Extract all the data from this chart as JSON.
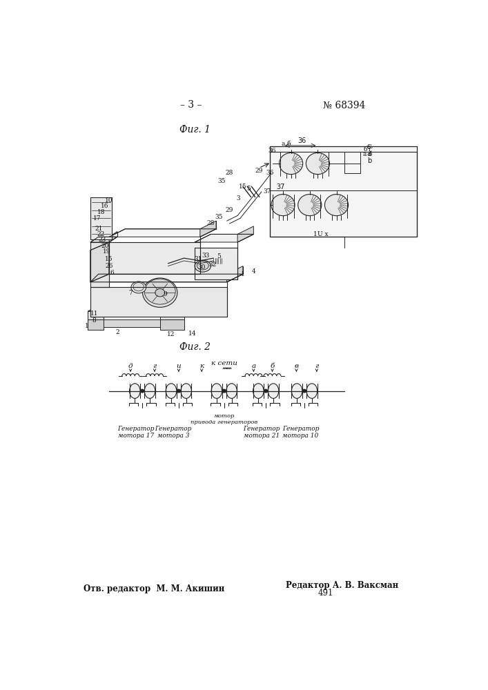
{
  "page_width": 7.07,
  "page_height": 10.0,
  "bg": "#ffffff",
  "lc": "#222222",
  "tc": "#111111",
  "header_left": "– 3 –",
  "header_right": "№ 68394",
  "fig1_label": "Фиг. 1",
  "fig2_label": "Фиг. 2",
  "footer_left": "Отв. редактор  М. М. Акишин",
  "footer_right1": "Редактор А. В. Ваксман",
  "footer_right2": "491"
}
